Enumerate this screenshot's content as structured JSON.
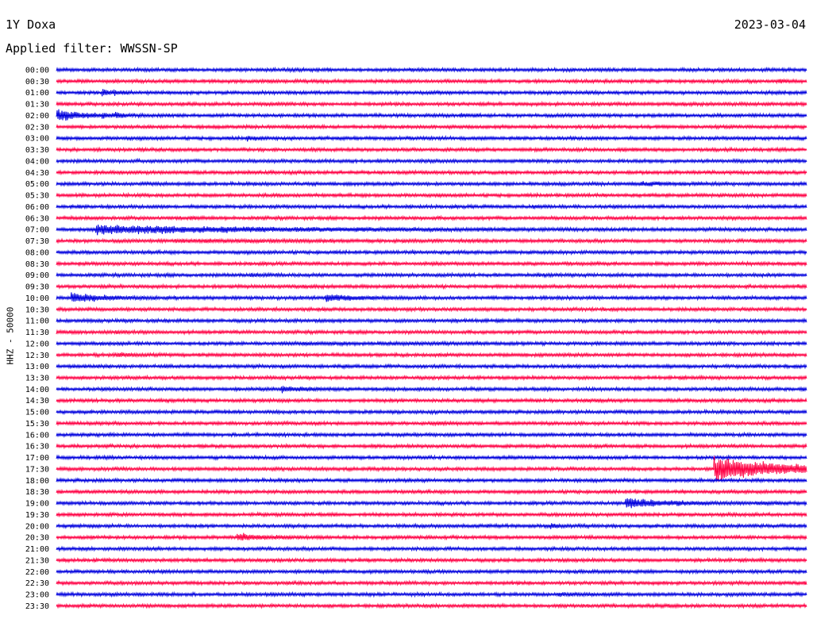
{
  "header": {
    "title": "1Y Doxa",
    "date": "2023-03-04",
    "filter_label": "Applied filter: WWSSN-SP"
  },
  "chart_data": {
    "type": "line",
    "title": "1Y Doxa",
    "ylabel": "HHZ - 50000",
    "colors": [
      "#0000dd",
      "#ff0044"
    ],
    "rows": [
      {
        "time": "00:00",
        "events": []
      },
      {
        "time": "00:30",
        "events": [
          {
            "x": 0.965,
            "amp": 0.45,
            "dur": 0.01
          }
        ]
      },
      {
        "time": "01:00",
        "events": [
          {
            "x": 0.063,
            "amp": 0.9,
            "dur": 0.01
          },
          {
            "x": 0.078,
            "amp": 0.5,
            "dur": 0.01
          }
        ]
      },
      {
        "time": "01:30",
        "events": [
          {
            "x": 0.28,
            "amp": 0.15,
            "dur": 0.02
          }
        ]
      },
      {
        "time": "02:00",
        "events": [
          {
            "x": 0.003,
            "amp": 2.2,
            "dur": 0.03
          },
          {
            "x": 0.063,
            "amp": 0.4,
            "dur": 0.01
          },
          {
            "x": 0.08,
            "amp": 0.6,
            "dur": 0.01
          },
          {
            "x": 0.54,
            "amp": 0.5,
            "dur": 0.01
          }
        ]
      },
      {
        "time": "02:30",
        "events": []
      },
      {
        "time": "03:00",
        "events": [
          {
            "x": 0.255,
            "amp": 0.6,
            "dur": 0.01
          }
        ]
      },
      {
        "time": "03:30",
        "events": [
          {
            "x": 0.75,
            "amp": 0.2,
            "dur": 0.02
          }
        ]
      },
      {
        "time": "04:00",
        "events": []
      },
      {
        "time": "04:30",
        "events": []
      },
      {
        "time": "05:00",
        "events": [
          {
            "x": 0.78,
            "amp": 0.45,
            "dur": 0.04
          }
        ]
      },
      {
        "time": "05:30",
        "events": []
      },
      {
        "time": "06:00",
        "events": [
          {
            "x": 0.635,
            "amp": 0.3,
            "dur": 0.01
          }
        ]
      },
      {
        "time": "06:30",
        "events": [
          {
            "x": 0.18,
            "amp": 0.2,
            "dur": 0.02
          }
        ]
      },
      {
        "time": "07:00",
        "events": [
          {
            "x": 0.054,
            "amp": 1.6,
            "dur": 0.2
          }
        ]
      },
      {
        "time": "07:30",
        "events": [
          {
            "x": 0.16,
            "amp": 0.25,
            "dur": 0.2
          },
          {
            "x": 0.93,
            "amp": 0.3,
            "dur": 0.02
          }
        ]
      },
      {
        "time": "08:00",
        "events": []
      },
      {
        "time": "08:30",
        "events": []
      },
      {
        "time": "09:00",
        "events": [
          {
            "x": 0.26,
            "amp": 0.3,
            "dur": 0.02
          }
        ]
      },
      {
        "time": "09:30",
        "events": [
          {
            "x": 0.99,
            "amp": 0.3,
            "dur": 0.01
          }
        ]
      },
      {
        "time": "10:00",
        "events": [
          {
            "x": 0.022,
            "amp": 1.6,
            "dur": 0.04
          },
          {
            "x": 0.36,
            "amp": 1.4,
            "dur": 0.03
          }
        ]
      },
      {
        "time": "10:30",
        "events": []
      },
      {
        "time": "11:00",
        "events": []
      },
      {
        "time": "11:30",
        "events": [
          {
            "x": 0.0,
            "amp": 0.2,
            "dur": 0.03
          },
          {
            "x": 0.08,
            "amp": 0.2,
            "dur": 0.02
          }
        ]
      },
      {
        "time": "12:00",
        "events": [
          {
            "x": 0.3,
            "amp": 0.15,
            "dur": 0.15
          }
        ]
      },
      {
        "time": "12:30",
        "events": [
          {
            "x": 0.082,
            "amp": 0.6,
            "dur": 0.02
          }
        ]
      },
      {
        "time": "13:00",
        "events": [
          {
            "x": 0.385,
            "amp": 0.25,
            "dur": 0.01
          }
        ]
      },
      {
        "time": "13:30",
        "events": []
      },
      {
        "time": "14:00",
        "events": [
          {
            "x": 0.3,
            "amp": 0.9,
            "dur": 0.03
          },
          {
            "x": 0.88,
            "amp": 0.3,
            "dur": 0.02
          },
          {
            "x": 0.995,
            "amp": 0.3,
            "dur": 0.01
          }
        ]
      },
      {
        "time": "14:30",
        "events": [
          {
            "x": 0.7,
            "amp": 0.2,
            "dur": 0.02
          }
        ]
      },
      {
        "time": "15:00",
        "events": []
      },
      {
        "time": "15:30",
        "events": [
          {
            "x": 0.5,
            "amp": 0.35,
            "dur": 0.02
          }
        ]
      },
      {
        "time": "16:00",
        "events": []
      },
      {
        "time": "16:30",
        "events": []
      },
      {
        "time": "17:00",
        "events": []
      },
      {
        "time": "17:30",
        "events": [
          {
            "x": 0.878,
            "amp": 4.6,
            "dur": 0.09
          }
        ]
      },
      {
        "time": "18:00",
        "events": []
      },
      {
        "time": "18:30",
        "events": []
      },
      {
        "time": "19:00",
        "events": [
          {
            "x": 0.76,
            "amp": 1.9,
            "dur": 0.05
          },
          {
            "x": 0.935,
            "amp": 0.3,
            "dur": 0.02
          }
        ]
      },
      {
        "time": "19:30",
        "events": []
      },
      {
        "time": "20:00",
        "events": [
          {
            "x": 0.66,
            "amp": 0.7,
            "dur": 0.01
          }
        ]
      },
      {
        "time": "20:30",
        "events": [
          {
            "x": 0.243,
            "amp": 1.2,
            "dur": 0.03
          }
        ]
      },
      {
        "time": "21:00",
        "events": []
      },
      {
        "time": "21:30",
        "events": []
      },
      {
        "time": "22:00",
        "events": []
      },
      {
        "time": "22:30",
        "events": []
      },
      {
        "time": "23:00",
        "events": [
          {
            "x": 0.67,
            "amp": 0.35,
            "dur": 0.03
          }
        ]
      },
      {
        "time": "23:30",
        "events": [
          {
            "x": 0.8,
            "amp": 0.2,
            "dur": 0.02
          }
        ]
      }
    ]
  }
}
